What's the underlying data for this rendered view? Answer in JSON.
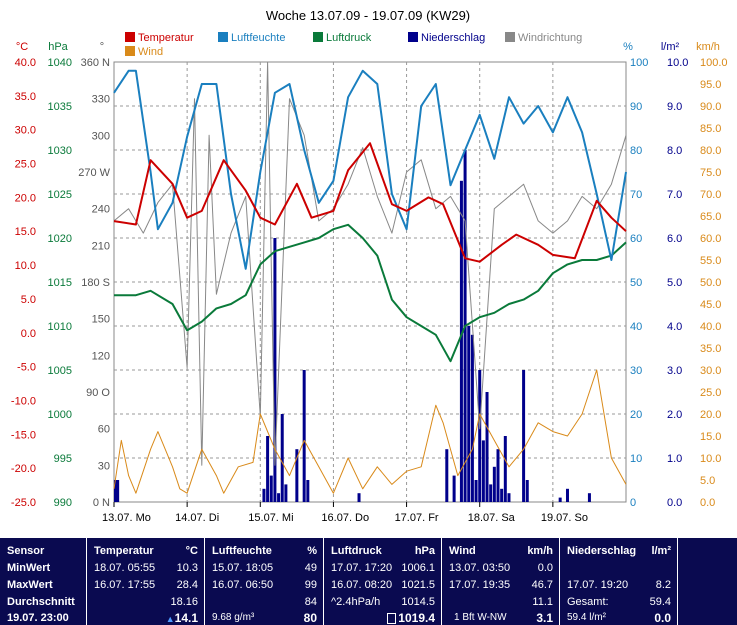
{
  "title": "Woche 13.07.09 - 19.07.09 (KW29)",
  "colors": {
    "temperature": "#cc0000",
    "humidity": "#1a7fbf",
    "pressure": "#0a7a3a",
    "rain": "#00008b",
    "wind": "#d98a1a",
    "direction": "#888888"
  },
  "chart_data": {
    "type": "line",
    "title": "Woche 13.07.09 - 19.07.09 (KW29)",
    "x_ticks": [
      "13.07. Mo",
      "14.07. Di",
      "15.07. Mi",
      "16.07. Do",
      "17.07. Fr",
      "18.07. Sa",
      "19.07. So"
    ],
    "legend": [
      "Temperatur",
      "Luftfeuchte",
      "Luftdruck",
      "Niederschlag",
      "Windrichtung",
      "Wind"
    ],
    "axes": {
      "temp": {
        "unit": "°C",
        "min": -25,
        "max": 40,
        "ticks": [
          "40.0",
          "35.0",
          "30.0",
          "25.0",
          "20.0",
          "15.0",
          "10.0",
          "5.0",
          "0.0",
          "-5.0",
          "-10.0",
          "-15.0",
          "-20.0",
          "-25.0"
        ]
      },
      "pressure": {
        "unit": "hPa",
        "min": 990,
        "max": 1040,
        "ticks": [
          "1040",
          "1035",
          "1030",
          "1025",
          "1020",
          "1015",
          "1010",
          "1005",
          "1000",
          "995",
          "990"
        ]
      },
      "direction": {
        "unit": "°",
        "min": 0,
        "max": 360,
        "ticks": [
          "360 N",
          "330",
          "300",
          "270 W",
          "240",
          "210",
          "180 S",
          "150",
          "120",
          "90 O",
          "60",
          "30",
          "0 N"
        ]
      },
      "humidity": {
        "unit": "%",
        "min": 0,
        "max": 100,
        "ticks": [
          "100",
          "90",
          "80",
          "70",
          "60",
          "50",
          "40",
          "30",
          "20",
          "10",
          "0"
        ]
      },
      "rain": {
        "unit": "l/m²",
        "min": 0,
        "max": 10,
        "ticks": [
          "10.0",
          "9.0",
          "8.0",
          "7.0",
          "6.0",
          "5.0",
          "4.0",
          "3.0",
          "2.0",
          "1.0",
          "0.0"
        ]
      },
      "wind": {
        "unit": "km/h",
        "min": 0,
        "max": 100,
        "ticks": [
          "100.0",
          "95.0",
          "90.0",
          "85.0",
          "80.0",
          "75.0",
          "70.0",
          "65.0",
          "60.0",
          "55.0",
          "50.0",
          "45.0",
          "40.0",
          "35.0",
          "30.0",
          "25.0",
          "20.0",
          "15.0",
          "10.0",
          "5.0",
          "0.0"
        ]
      }
    },
    "series": [
      {
        "name": "Temperatur",
        "axis": "temp",
        "t": [
          0,
          0.3,
          0.5,
          0.8,
          1.0,
          1.2,
          1.5,
          1.8,
          2.0,
          2.2,
          2.5,
          2.7,
          3.0,
          3.2,
          3.5,
          3.8,
          4.0,
          4.3,
          4.5,
          4.8,
          5.0,
          5.3,
          5.5,
          5.8,
          6.0,
          6.3,
          6.6,
          6.8,
          7.0
        ],
        "v": [
          16.5,
          16,
          25.5,
          22,
          17,
          18,
          25.5,
          21,
          17,
          16,
          22,
          17,
          18,
          24,
          28,
          19,
          18,
          20,
          19,
          11,
          10.5,
          13,
          14.5,
          13,
          11.5,
          11,
          19.5,
          17,
          15
        ]
      },
      {
        "name": "Luftfeuchte",
        "axis": "humidity",
        "t": [
          0,
          0.2,
          0.3,
          0.5,
          0.6,
          0.8,
          1.0,
          1.2,
          1.4,
          1.6,
          1.8,
          2.0,
          2.2,
          2.4,
          2.6,
          2.8,
          3.0,
          3.2,
          3.4,
          3.6,
          3.8,
          4.0,
          4.2,
          4.4,
          4.6,
          4.8,
          5.0,
          5.2,
          5.4,
          5.6,
          5.8,
          6.0,
          6.2,
          6.4,
          6.6,
          6.8,
          7.0
        ],
        "v": [
          93,
          98,
          98,
          75,
          62,
          68,
          83,
          95,
          95,
          70,
          53,
          75,
          93,
          95,
          80,
          68,
          73,
          92,
          98,
          95,
          70,
          62,
          90,
          95,
          72,
          80,
          88,
          78,
          92,
          86,
          90,
          84,
          92,
          84,
          70,
          55,
          75
        ]
      },
      {
        "name": "Luftdruck",
        "axis": "pressure",
        "t": [
          0,
          0.3,
          0.5,
          0.8,
          1.0,
          1.2,
          1.4,
          1.6,
          1.8,
          2.0,
          2.2,
          2.4,
          2.6,
          2.8,
          3.0,
          3.2,
          3.4,
          3.6,
          3.8,
          4.0,
          4.2,
          4.4,
          4.6,
          4.8,
          5.0,
          5.2,
          5.4,
          5.6,
          5.8,
          6.0,
          6.2,
          6.4,
          6.6,
          6.8,
          7.0
        ],
        "v": [
          1013.5,
          1013.5,
          1014,
          1012.5,
          1009.5,
          1010.5,
          1012,
          1012.5,
          1013.5,
          1017,
          1018.5,
          1019,
          1019.5,
          1020,
          1021,
          1021.5,
          1020,
          1018,
          1013,
          1011,
          1010,
          1009,
          1006,
          1010,
          1011,
          1011.5,
          1012.5,
          1013,
          1014,
          1016,
          1017,
          1017.5,
          1017.5,
          1018,
          1019.5
        ]
      },
      {
        "name": "Windrichtung",
        "axis": "direction",
        "t": [
          0,
          0.2,
          0.4,
          0.6,
          0.8,
          1.0,
          1.1,
          1.2,
          1.3,
          1.4,
          1.6,
          1.8,
          2.0,
          2.1,
          2.2,
          2.4,
          2.6,
          2.8,
          3.0,
          3.2,
          3.4,
          3.6,
          3.8,
          4.0,
          4.2,
          4.4,
          4.6,
          4.8,
          5.0,
          5.2,
          5.4,
          5.6,
          5.8,
          6.0,
          6.2,
          6.4,
          6.6,
          6.8,
          7.0
        ],
        "v": [
          230,
          240,
          220,
          245,
          260,
          110,
          330,
          30,
          300,
          170,
          220,
          250,
          70,
          360,
          30,
          330,
          300,
          230,
          240,
          260,
          290,
          250,
          220,
          270,
          280,
          240,
          250,
          230,
          60,
          240,
          250,
          260,
          230,
          220,
          230,
          250,
          240,
          260,
          300
        ]
      },
      {
        "name": "Wind",
        "axis": "wind",
        "t": [
          0,
          0.1,
          0.2,
          0.3,
          0.5,
          0.6,
          0.8,
          0.9,
          1.0,
          1.2,
          1.4,
          1.5,
          1.7,
          1.9,
          2.0,
          2.2,
          2.4,
          2.6,
          2.8,
          3.0,
          3.2,
          3.4,
          3.6,
          3.8,
          4.0,
          4.2,
          4.4,
          4.5,
          4.7,
          4.9,
          5.0,
          5.2,
          5.4,
          5.6,
          5.8,
          6.0,
          6.2,
          6.4,
          6.6,
          6.8,
          7.0
        ],
        "v": [
          3,
          14,
          6,
          2,
          12,
          16,
          8,
          3,
          2,
          12,
          6,
          2,
          8,
          9,
          20,
          12,
          6,
          14,
          8,
          2,
          10,
          3,
          8,
          4,
          7,
          8,
          22,
          18,
          6,
          12,
          20,
          14,
          8,
          12,
          18,
          16,
          15,
          20,
          30,
          10,
          4
        ]
      }
    ],
    "rain": {
      "name": "Niederschlag",
      "axis": "rain",
      "t": [
        0.02,
        0.05,
        2.05,
        2.1,
        2.15,
        2.2,
        2.25,
        2.3,
        2.35,
        2.5,
        2.6,
        2.65,
        3.35,
        4.55,
        4.65,
        4.75,
        4.8,
        4.85,
        4.9,
        4.95,
        5.0,
        5.05,
        5.1,
        5.15,
        5.2,
        5.25,
        5.3,
        5.35,
        5.4,
        5.6,
        5.65,
        6.1,
        6.2,
        6.5
      ],
      "v": [
        0.5,
        0.5,
        0.3,
        1.5,
        0.6,
        6,
        0.2,
        2,
        0.4,
        1.2,
        3,
        0.5,
        0.2,
        1.2,
        0.6,
        7.3,
        8,
        4,
        3.8,
        0.5,
        3,
        1.4,
        2.5,
        0.4,
        0.8,
        1.2,
        0.3,
        1.5,
        0.2,
        3,
        0.5,
        0.1,
        0.3,
        0.2
      ]
    }
  },
  "table": {
    "sensor": {
      "header": "Sensor",
      "min": "MinWert",
      "max": "MaxWert",
      "avg": "Durchschnitt",
      "now": "19.07. 23:00"
    },
    "temperature": {
      "header": "Temperatur",
      "unit": "°C",
      "min_time": "18.07.  05:55",
      "min_val": "10.3",
      "max_time": "16.07.  17:55",
      "max_val": "28.4",
      "avg": "18.16",
      "now": "14.1"
    },
    "humidity": {
      "header": "Luftfeuchte",
      "unit": "%",
      "min_time": "15.07.  18:05",
      "min_val": "49",
      "max_time": "16.07.  06:50",
      "max_val": "99",
      "avg": "84",
      "now_extra": "9.68 g/m³",
      "now": "80"
    },
    "pressure": {
      "header": "Luftdruck",
      "unit": "hPa",
      "min_time": "17.07.  17:20",
      "min_val": "1006.1",
      "max_time": "16.07.  08:20",
      "max_val": "1021.5",
      "trend": "^2.4hPa/h",
      "avg": "1014.5",
      "now": "1019.4"
    },
    "wind": {
      "header": "Wind",
      "unit": "km/h",
      "min_time": "13.07.  03:50",
      "min_val": "0.0",
      "max_time": "17.07.  19:35",
      "max_val": "46.7",
      "avg": "11.1",
      "now_extra": "1 Bft W-NW",
      "now": "3.1"
    },
    "rain": {
      "header": "Niederschlag",
      "unit": "l/m²",
      "max_time": "17.07.  19:20",
      "max_val": "8.2",
      "total_label": "Gesamt:",
      "total": "59.4",
      "now_extra": "59.4 l/m²",
      "now": "0.0"
    }
  }
}
